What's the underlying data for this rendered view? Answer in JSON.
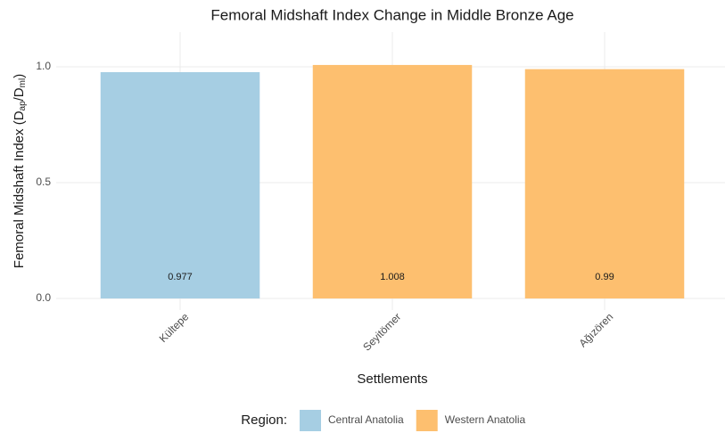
{
  "chart_data": {
    "type": "bar",
    "title": "Femoral Midshaft Index Change in Middle Bronze Age",
    "x_label": "Settlements",
    "y_label": [
      "Femoral Midshaft Index (D",
      "ap",
      "/D",
      "ml",
      ")"
    ],
    "categories": [
      "Kültepe",
      "Seyitömer",
      "Ağızören"
    ],
    "series": [
      {
        "name": "Central Anatolia",
        "color": "#a6cee3",
        "values": [
          0.977,
          null,
          null
        ]
      },
      {
        "name": "Western Anatolia",
        "color": "#fdbf6f",
        "values": [
          null,
          1.008,
          0.99
        ]
      }
    ],
    "legend_title": "Region:",
    "legend": "bottom",
    "ylim": [
      -0.05,
      1.15
    ],
    "yticks": [
      {
        "value": 0,
        "label": "0.0"
      },
      {
        "value": 0.5,
        "label": "0.5"
      },
      {
        "value": 1,
        "label": "1.0"
      }
    ],
    "grid": true
  }
}
